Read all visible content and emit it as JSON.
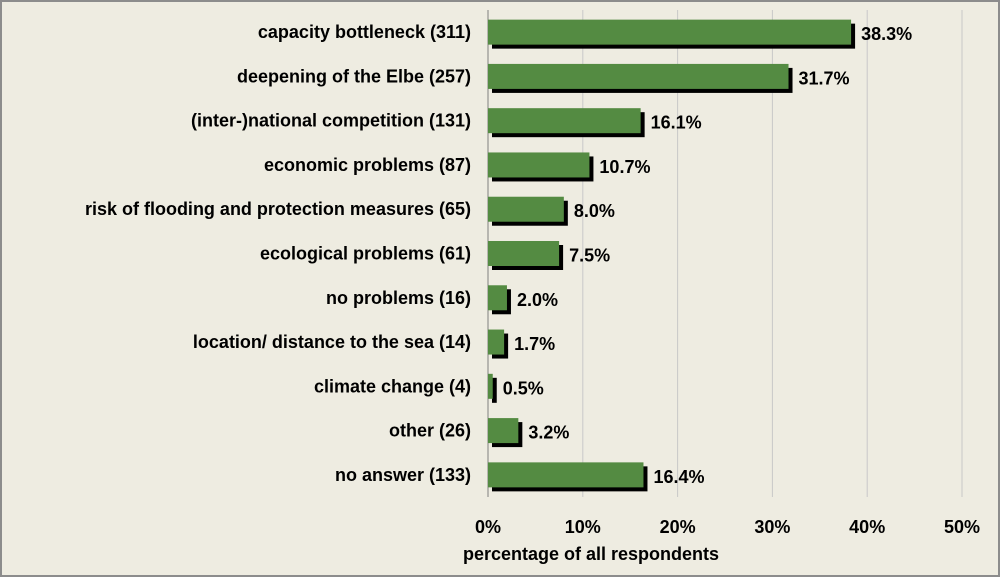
{
  "chart_data": {
    "type": "bar",
    "orientation": "horizontal",
    "categories": [
      "capacity bottleneck (311)",
      "deepening of the Elbe (257)",
      "(inter-)national competition (131)",
      "economic problems (87)",
      "risk of flooding and protection measures (65)",
      "ecological problems (61)",
      "no problems (16)",
      "location/ distance to the sea (14)",
      "climate change (4)",
      "other (26)",
      "no answer (133)"
    ],
    "values": [
      38.3,
      31.7,
      16.1,
      10.7,
      8.0,
      7.5,
      2.0,
      1.7,
      0.5,
      3.2,
      16.4
    ],
    "value_labels": [
      "38.3%",
      "31.7%",
      "16.1%",
      "10.7%",
      "8.0%",
      "7.5%",
      "2.0%",
      "1.7%",
      "0.5%",
      "3.2%",
      "16.4%"
    ],
    "xlabel": "percentage of all respondents",
    "xlim": [
      0,
      50
    ],
    "xticks": [
      0,
      10,
      20,
      30,
      40,
      50
    ],
    "xtick_labels": [
      "0%",
      "10%",
      "20%",
      "30%",
      "40%",
      "50%"
    ],
    "grid": "vertical",
    "legend": "none",
    "bar_color": "#548b42",
    "shadow_color": "#000000",
    "background_color": "#eeece1"
  }
}
